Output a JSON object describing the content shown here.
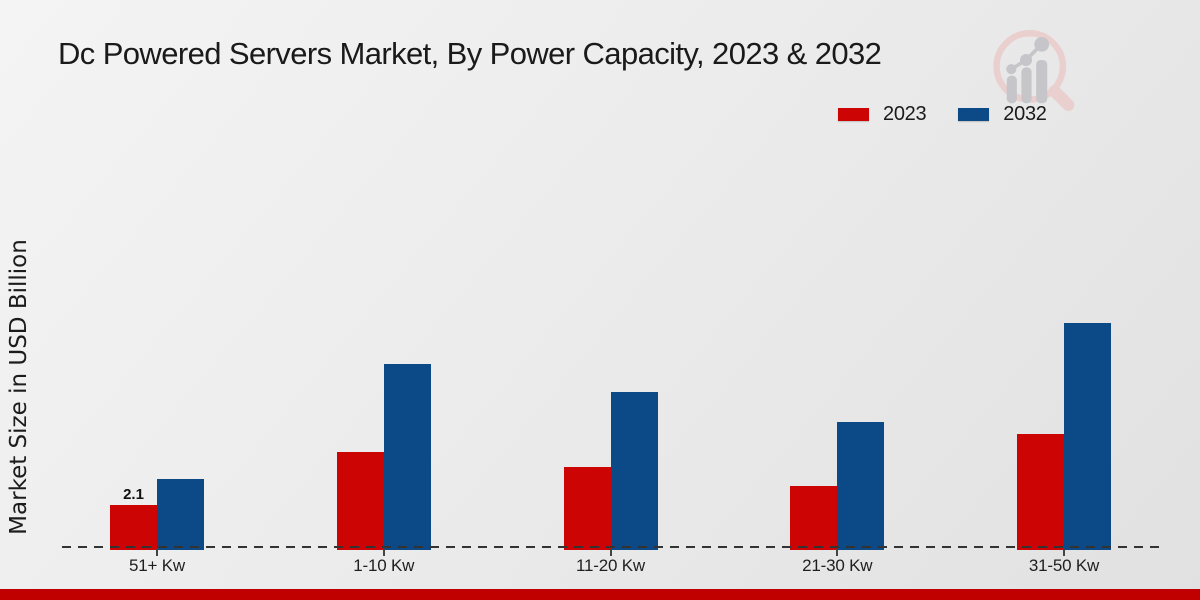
{
  "chart_data": {
    "type": "bar",
    "title": "Dc Powered Servers Market, By Power Capacity, 2023 & 2032",
    "xlabel": "",
    "ylabel": "Market Size in USD Billion",
    "categories": [
      "51+ Kw",
      "1-10 Kw",
      "11-20 Kw",
      "21-30 Kw",
      "31-50 Kw"
    ],
    "series": [
      {
        "name": "2023",
        "color": "#cc0404",
        "values": [
          2.1,
          4.6,
          3.9,
          3.0,
          5.4
        ]
      },
      {
        "name": "2032",
        "color": "#0c4a87",
        "values": [
          3.3,
          8.7,
          7.4,
          6.0,
          10.6
        ]
      }
    ],
    "data_labels": [
      {
        "series": "2023",
        "category": "51+ Kw",
        "text": "2.1"
      }
    ],
    "ylim": [
      0,
      11
    ],
    "grid": false,
    "legend_position": "top-right",
    "baseline_style": "dashed"
  },
  "footer": {
    "accent_color": "#c00000"
  },
  "watermark": {
    "icon": "magnifier-growth-chart-logo"
  }
}
